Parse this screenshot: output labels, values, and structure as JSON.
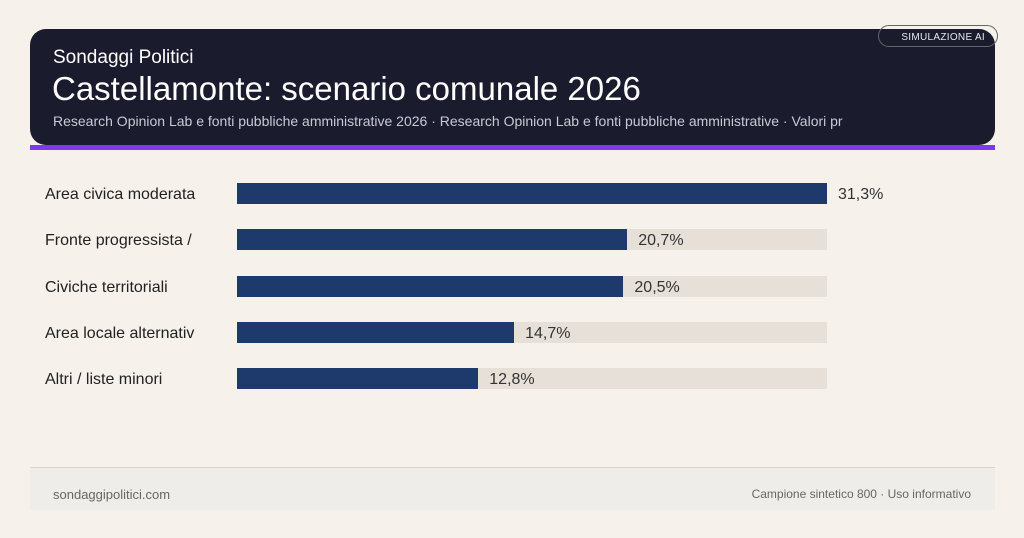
{
  "header": {
    "brand": "Sondaggi Politici",
    "title": "Castellamonte: scenario comunale 2026",
    "subtitle": "Research Opinion Lab e fonti pubbliche amministrative 2026 · Research Opinion Lab e fonti pubbliche amministrative · Valori pr",
    "badge": "SIMULAZIONE AI"
  },
  "colors": {
    "bar": "#1e3a6c",
    "track": "#e6e0d9",
    "accent": "#7c3aed",
    "header_bg": "#1b1b2e"
  },
  "chart_data": {
    "type": "bar",
    "orientation": "horizontal",
    "categories": [
      "Area civica moderata",
      "Fronte progressista /",
      "Civiche territoriali",
      "Area locale alternativ",
      "Altri / liste minori"
    ],
    "values": [
      31.3,
      20.7,
      20.5,
      14.7,
      12.8
    ],
    "value_labels": [
      "31,3%",
      "20,7%",
      "20,5%",
      "14,7%",
      "12,8%"
    ],
    "unit": "%",
    "xlim": [
      0,
      31.3
    ],
    "grid": false
  },
  "footer": {
    "left": "sondaggipolitici.com",
    "right": "Campione sintetico 800 · Uso informativo"
  }
}
